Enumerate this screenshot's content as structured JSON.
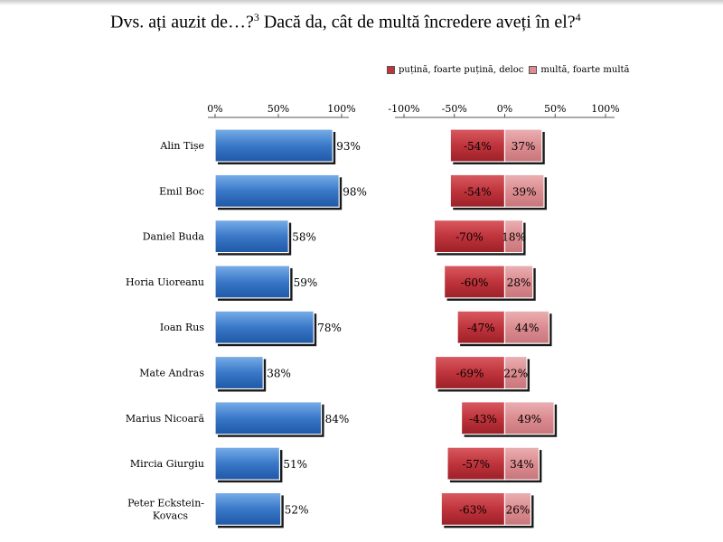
{
  "title": {
    "main": "Dvs. ați auzit de…?",
    "sup1": "3",
    "rest": " Dacă da, cât de multă încredere aveți în el?",
    "sup2": "4"
  },
  "legend": {
    "low_label": "puțină, foarte puțină, deloc",
    "high_label": "multă, foarte multă"
  },
  "colors": {
    "awareness_bar": "#3a78c8",
    "low_trust": "#c0343c",
    "high_trust": "#dc8c90"
  },
  "chart_data": [
    {
      "type": "bar",
      "title": "Dvs. ați auzit de…?",
      "orientation": "horizontal",
      "xlim": [
        0,
        100
      ],
      "ticks": [
        "0%",
        "50%",
        "100%"
      ],
      "tick_values": [
        0,
        50,
        100
      ],
      "categories": [
        "Alin Tișe",
        "Emil Boc",
        "Daniel Buda",
        "Horia Uioreanu",
        "Ioan Rus",
        "Mate Andras",
        "Marius Nicoară",
        "Mircia Giurgiu",
        "Peter Eckstein-Kovacs"
      ],
      "values": [
        93,
        98,
        58,
        59,
        78,
        38,
        84,
        51,
        52
      ],
      "labels": [
        "93%",
        "98%",
        "58%",
        "59%",
        "78%",
        "38%",
        "84%",
        "51%",
        "52%"
      ]
    },
    {
      "type": "bar",
      "title": "Cât de multă încredere aveți în el?",
      "orientation": "horizontal",
      "stacked": "diverging",
      "xlim": [
        -100,
        100
      ],
      "ticks": [
        "-100%",
        "-50%",
        "0%",
        "50%",
        "100%"
      ],
      "tick_values": [
        -100,
        -50,
        0,
        50,
        100
      ],
      "categories": [
        "Alin Tișe",
        "Emil Boc",
        "Daniel Buda",
        "Horia Uioreanu",
        "Ioan Rus",
        "Mate Andras",
        "Marius Nicoară",
        "Mircia Giurgiu",
        "Peter Eckstein-Kovacs"
      ],
      "series": [
        {
          "name": "puțină, foarte puțină, deloc",
          "values": [
            -54,
            -54,
            -70,
            -60,
            -47,
            -69,
            -43,
            -57,
            -63
          ],
          "labels": [
            "-54%",
            "-54%",
            "-70%",
            "-60%",
            "-47%",
            "-69%",
            "-43%",
            "-57%",
            "-63%"
          ]
        },
        {
          "name": "multă, foarte multă",
          "values": [
            37,
            39,
            18,
            28,
            44,
            22,
            49,
            34,
            26
          ],
          "labels": [
            "37%",
            "39%",
            "18%",
            "28%",
            "44%",
            "22%",
            "49%",
            "34%",
            "26%"
          ]
        }
      ]
    }
  ]
}
